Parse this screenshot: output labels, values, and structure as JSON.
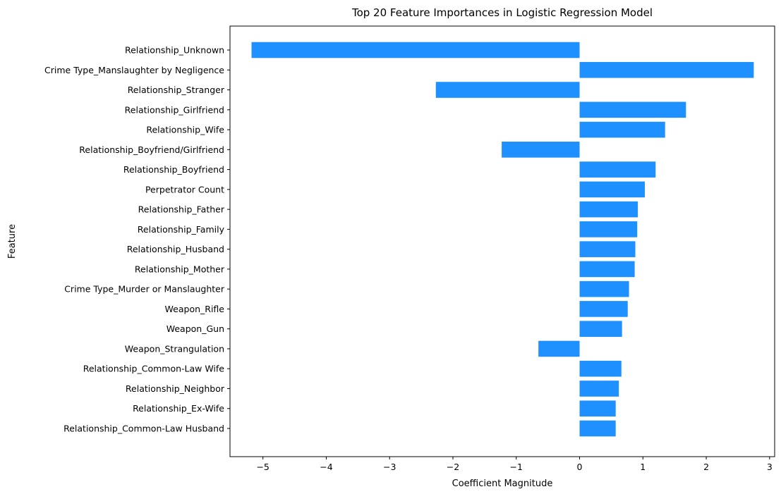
{
  "chart_data": {
    "type": "bar",
    "orientation": "horizontal",
    "title": "Top 20 Feature Importances in Logistic Regression Model",
    "xlabel": "Coefficient Magnitude",
    "ylabel": "Feature",
    "xlim": [
      -5.52,
      3.08
    ],
    "xticks": [
      -5,
      -4,
      -3,
      -2,
      -1,
      0,
      1,
      2,
      3
    ],
    "xtick_labels": [
      "−5",
      "−4",
      "−3",
      "−2",
      "−1",
      "0",
      "1",
      "2",
      "3"
    ],
    "grid": false,
    "bar_color": "#1e90ff",
    "categories": [
      "Relationship_Unknown",
      "Crime Type_Manslaughter by Negligence",
      "Relationship_Stranger",
      "Relationship_Girlfriend",
      "Relationship_Wife",
      "Relationship_Boyfriend/Girlfriend",
      "Relationship_Boyfriend",
      "Perpetrator Count",
      "Relationship_Father",
      "Relationship_Family",
      "Relationship_Husband",
      "Relationship_Mother",
      "Crime Type_Murder or Manslaughter",
      "Weapon_Rifle",
      "Weapon_Gun",
      "Weapon_Strangulation",
      "Relationship_Common-Law Wife",
      "Relationship_Neighbor",
      "Relationship_Ex-Wife",
      "Relationship_Common-Law Husband"
    ],
    "values": [
      -5.18,
      2.75,
      -2.27,
      1.68,
      1.35,
      -1.23,
      1.2,
      1.03,
      0.92,
      0.91,
      0.88,
      0.87,
      0.78,
      0.76,
      0.67,
      -0.65,
      0.66,
      0.62,
      0.57,
      0.57
    ]
  }
}
